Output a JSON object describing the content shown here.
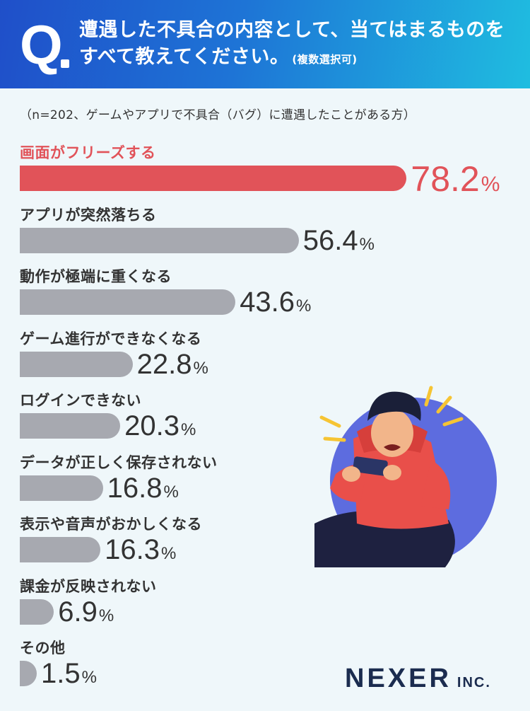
{
  "header": {
    "q_mark": "Q",
    "question": "遭遇した不具合の内容として、当てはまるものをすべて教えてください。",
    "note": "(複数選択可)"
  },
  "sample_note": "（n=202、ゲームやアプリで不具合（バグ）に遭遇したことがある方）",
  "logo": {
    "main": "NEXER",
    "sub": "INC."
  },
  "colors": {
    "highlight": "#e15359",
    "bar": "#a7a9b0",
    "header_start": "#1f4fc9",
    "header_end": "#1fbde0"
  },
  "chart_data": {
    "type": "bar",
    "orientation": "horizontal",
    "unit": "%",
    "categories": [
      "画面がフリーズする",
      "アプリが突然落ちる",
      "動作が極端に重くなる",
      "ゲーム進行ができなくなる",
      "ログインできない",
      "データが正しく保存されない",
      "表示や音声がおかしくなる",
      "課金が反映されない",
      "その他"
    ],
    "values": [
      78.2,
      56.4,
      43.6,
      22.8,
      20.3,
      16.8,
      16.3,
      6.9,
      1.5
    ],
    "highlight_index": 0
  }
}
